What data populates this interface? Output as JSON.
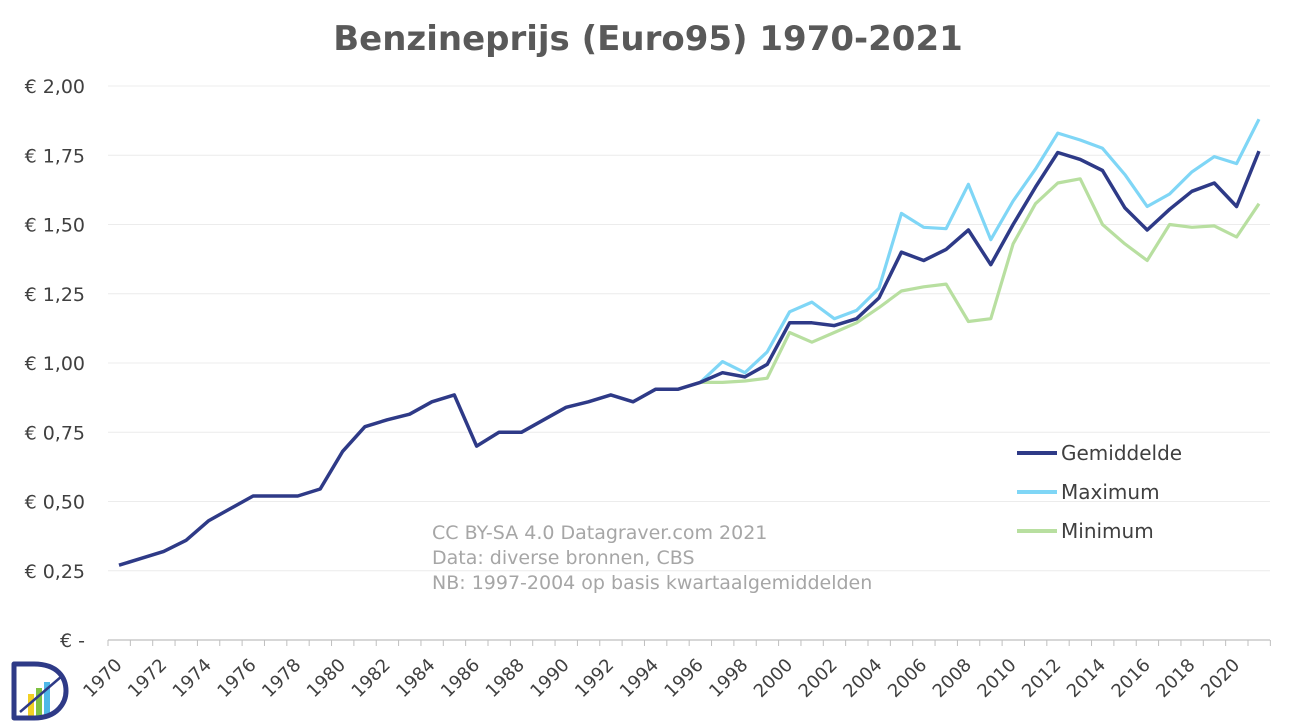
{
  "chart_data": {
    "type": "line",
    "title": "Benzineprijs (Euro95) 1970-2021",
    "xlabel": "",
    "ylabel": "",
    "ylim": [
      0,
      2.0
    ],
    "xlim": [
      1970,
      2021
    ],
    "yticks": [
      0,
      0.25,
      0.5,
      0.75,
      1.0,
      1.25,
      1.5,
      1.75,
      2.0
    ],
    "ytick_labels": [
      "€ -",
      "€ 0,25",
      "€ 0,50",
      "€ 0,75",
      "€ 1,00",
      "€ 1,25",
      "€ 1,50",
      "€ 1,75",
      "€ 2,00"
    ],
    "xtick_labels": [
      "1970",
      "1972",
      "1974",
      "1976",
      "1978",
      "1980",
      "1982",
      "1984",
      "1986",
      "1988",
      "1990",
      "1992",
      "1994",
      "1996",
      "1998",
      "2000",
      "2002",
      "2004",
      "2006",
      "2008",
      "2010",
      "2012",
      "2014",
      "2016",
      "2018",
      "2020"
    ],
    "grid": true,
    "legend_position": "right",
    "series": [
      {
        "name": "Gemiddelde",
        "color": "#2E3A87",
        "x": [
          1970,
          1971,
          1972,
          1973,
          1974,
          1975,
          1976,
          1977,
          1978,
          1979,
          1980,
          1981,
          1982,
          1983,
          1984,
          1985,
          1986,
          1987,
          1988,
          1989,
          1990,
          1991,
          1992,
          1993,
          1994,
          1995,
          1996,
          1997,
          1998,
          1999,
          2000,
          2001,
          2002,
          2003,
          2004,
          2005,
          2006,
          2007,
          2008,
          2009,
          2010,
          2011,
          2012,
          2013,
          2014,
          2015,
          2016,
          2017,
          2018,
          2019,
          2020,
          2021
        ],
        "values": [
          0.27,
          0.295,
          0.32,
          0.36,
          0.43,
          0.475,
          0.52,
          0.52,
          0.52,
          0.545,
          0.68,
          0.77,
          0.795,
          0.815,
          0.86,
          0.885,
          0.7,
          0.75,
          0.75,
          0.795,
          0.84,
          0.86,
          0.885,
          0.86,
          0.905,
          0.905,
          0.93,
          0.965,
          0.95,
          0.995,
          1.145,
          1.145,
          1.135,
          1.16,
          1.235,
          1.4,
          1.37,
          1.41,
          1.48,
          1.355,
          1.5,
          1.635,
          1.76,
          1.735,
          1.695,
          1.56,
          1.48,
          1.555,
          1.62,
          1.65,
          1.565,
          1.765
        ]
      },
      {
        "name": "Maximum",
        "color": "#7FD6F6",
        "x": [
          1996,
          1997,
          1998,
          1999,
          2000,
          2001,
          2002,
          2003,
          2004,
          2005,
          2006,
          2007,
          2008,
          2009,
          2010,
          2011,
          2012,
          2013,
          2014,
          2015,
          2016,
          2017,
          2018,
          2019,
          2020,
          2021
        ],
        "values": [
          0.93,
          1.005,
          0.965,
          1.04,
          1.185,
          1.22,
          1.16,
          1.19,
          1.27,
          1.54,
          1.49,
          1.485,
          1.645,
          1.445,
          1.585,
          1.7,
          1.83,
          1.805,
          1.775,
          1.68,
          1.565,
          1.61,
          1.69,
          1.745,
          1.72,
          1.88
        ]
      },
      {
        "name": "Minimum",
        "color": "#B8DFA0",
        "x": [
          1996,
          1997,
          1998,
          1999,
          2000,
          2001,
          2002,
          2003,
          2004,
          2005,
          2006,
          2007,
          2008,
          2009,
          2010,
          2011,
          2012,
          2013,
          2014,
          2015,
          2016,
          2017,
          2018,
          2019,
          2020,
          2021
        ],
        "values": [
          0.93,
          0.93,
          0.935,
          0.945,
          1.11,
          1.075,
          1.11,
          1.145,
          1.2,
          1.26,
          1.275,
          1.285,
          1.15,
          1.16,
          1.43,
          1.575,
          1.65,
          1.665,
          1.5,
          1.43,
          1.37,
          1.5,
          1.49,
          1.495,
          1.455,
          1.575
        ]
      }
    ],
    "annotations": [
      "CC BY-SA 4.0 Datagraver.com 2021",
      "Data: diverse bronnen, CBS",
      "NB: 1997-2004 op basis kwartaalgemiddelden"
    ],
    "logo": {
      "letter": "D",
      "colors": [
        "#2E3A87",
        "#4FB8E8",
        "#7FC241",
        "#F2D024"
      ]
    }
  }
}
